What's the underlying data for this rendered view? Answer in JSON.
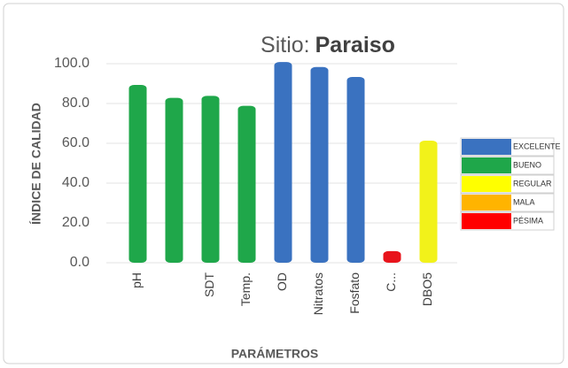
{
  "chart_data": {
    "type": "bar",
    "title": [
      "Sitio:",
      "Paraiso"
    ],
    "ylabel": "ÍNDICE DE CALIDAD",
    "xlabel": "PARÁMETROS",
    "categories": [
      "pH",
      null,
      "SDT",
      "Temp.",
      "OD",
      "Nitratos",
      "Fosfato",
      "C...",
      "DBO5"
    ],
    "values": [
      88,
      81.5,
      82.5,
      77.5,
      99.5,
      97,
      92,
      4.5,
      60
    ],
    "colors": [
      "#1fa74a",
      "#1fa74a",
      "#1fa74a",
      "#1fa74a",
      "#3a72c0",
      "#3a72c0",
      "#3a72c0",
      "#e8141c",
      "#f2f21a"
    ],
    "ylim": [
      0,
      100
    ],
    "yticks": [
      {
        "value": 0,
        "label": "0.0"
      },
      {
        "value": 20,
        "label": "20.0"
      },
      {
        "value": 40,
        "label": "40.0"
      },
      {
        "value": 60,
        "label": "60.0"
      },
      {
        "value": 80,
        "label": "80.0"
      },
      {
        "value": 100,
        "label": "100.0"
      }
    ],
    "grid": true,
    "legend": [
      {
        "name": "EXCELENTE",
        "color": "#3a72c0"
      },
      {
        "name": "BUENO",
        "color": "#1fa74a"
      },
      {
        "name": "REGULAR",
        "color": "#ffff00"
      },
      {
        "name": "MALA",
        "color": "#ffb400"
      },
      {
        "name": "PÉSIMA",
        "color": "#ff0000"
      }
    ]
  }
}
